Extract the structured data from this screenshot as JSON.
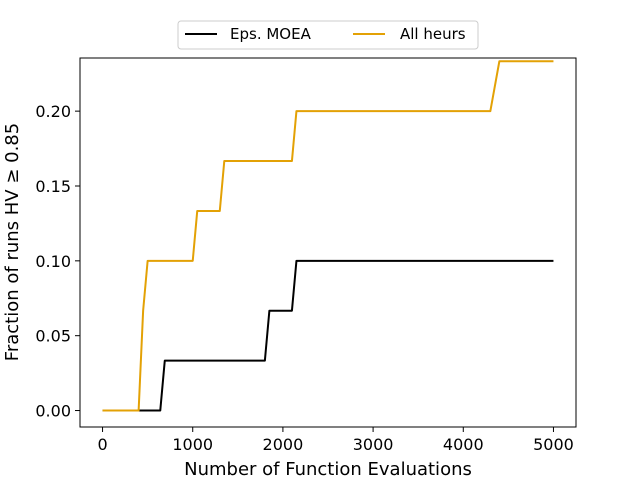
{
  "chart_data": {
    "type": "line",
    "xlabel": "Number of Function Evaluations",
    "ylabel": "Fraction of runs HV ≥ 0.85",
    "xlim": [
      -250,
      5250
    ],
    "ylim": [
      -0.011,
      0.2355
    ],
    "xticks": [
      0,
      1000,
      2000,
      3000,
      4000,
      5000
    ],
    "xtick_labels": [
      "0",
      "1000",
      "2000",
      "3000",
      "4000",
      "5000"
    ],
    "yticks": [
      0.0,
      0.05,
      0.1,
      0.15,
      0.2
    ],
    "ytick_labels": [
      "0.00",
      "0.05",
      "0.10",
      "0.15",
      "0.20"
    ],
    "grid": false,
    "legend_position": "top-center",
    "series": [
      {
        "name": "Eps. MOEA",
        "color": "#000000",
        "x": [
          0,
          400,
          640,
          690,
          1800,
          1850,
          2100,
          2150,
          5000
        ],
        "y": [
          0,
          0,
          0,
          0.0333,
          0.0333,
          0.0667,
          0.0667,
          0.1,
          0.1
        ]
      },
      {
        "name": "All heurs",
        "color": "#e3a105",
        "x": [
          0,
          400,
          450,
          500,
          1000,
          1050,
          1300,
          1350,
          2100,
          2150,
          4300,
          4400,
          5000
        ],
        "y": [
          0,
          0,
          0.0667,
          0.1,
          0.1,
          0.1333,
          0.1333,
          0.1667,
          0.1667,
          0.2,
          0.2,
          0.2333,
          0.2333
        ]
      }
    ]
  }
}
